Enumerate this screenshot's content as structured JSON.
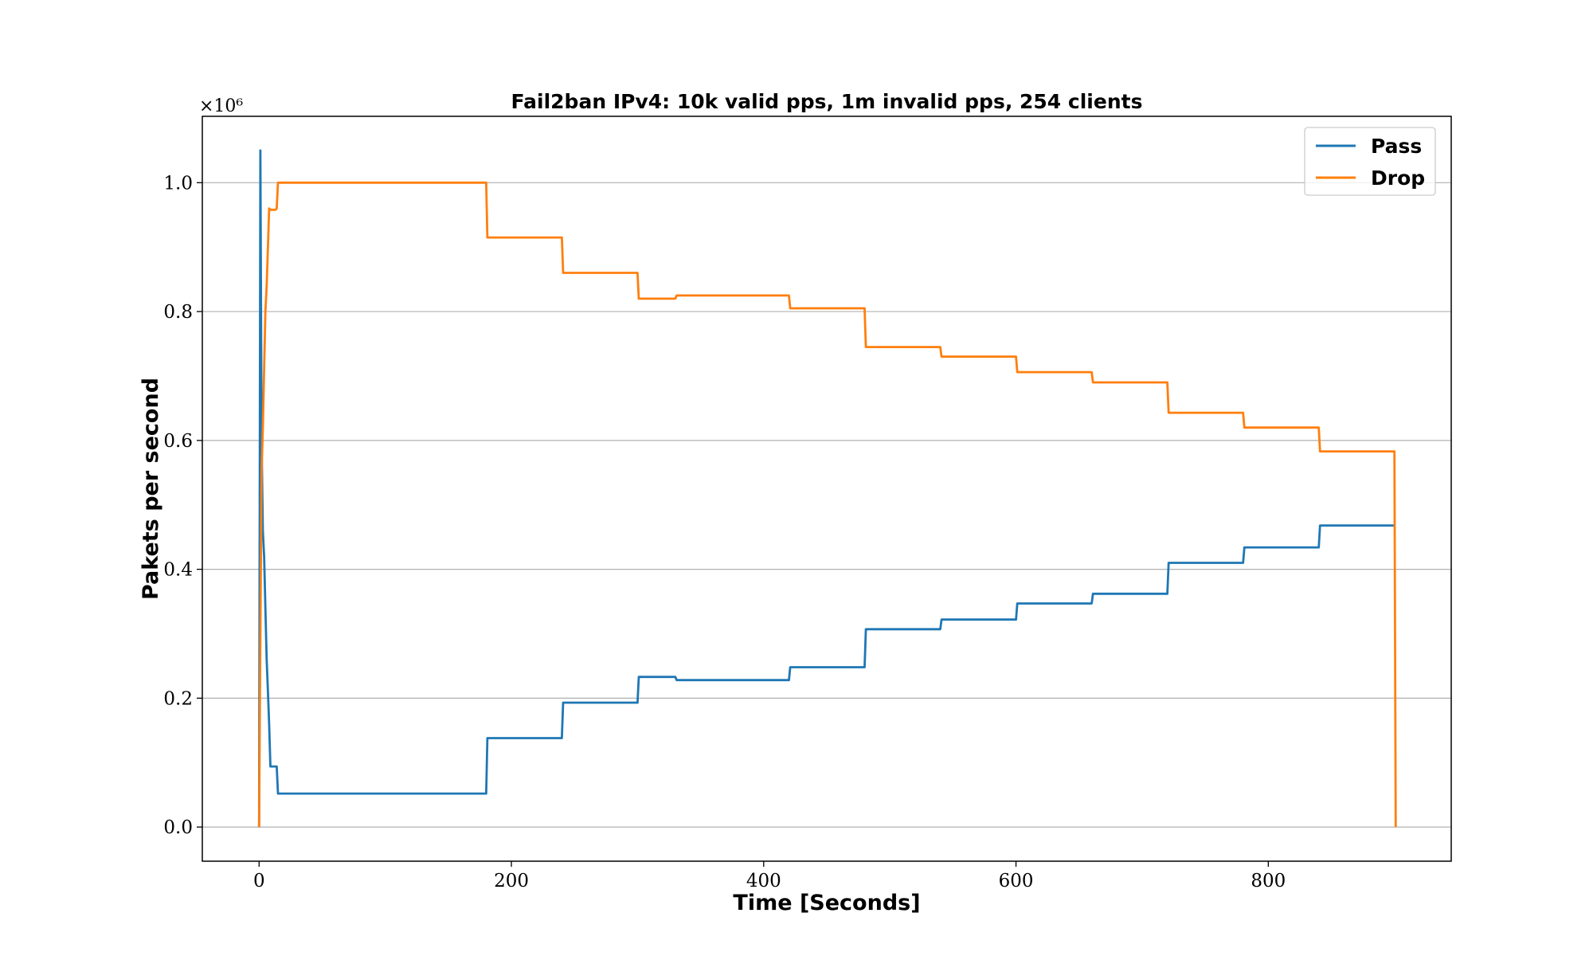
{
  "chart_data": {
    "type": "line",
    "title": "Fail2ban IPv4:  10k valid pps, 1m invalid pps, 254 clients",
    "xlabel": "Time [Seconds]",
    "ylabel": "Pakets per second",
    "y_offset_label": "×10⁶",
    "xlim": [
      -45,
      945
    ],
    "ylim": [
      -0.053,
      1.103
    ],
    "x_ticks": [
      0,
      200,
      400,
      600,
      800
    ],
    "x_tick_labels": [
      "0",
      "200",
      "400",
      "600",
      "800"
    ],
    "y_ticks": [
      0.0,
      0.2,
      0.4,
      0.6,
      0.8,
      1.0
    ],
    "y_tick_labels": [
      "0.0",
      "0.2",
      "0.4",
      "0.6",
      "0.8",
      "1.0"
    ],
    "grid": "horizontal",
    "legend_position": "top-right",
    "series": [
      {
        "name": "Pass",
        "color": "#1f77b4",
        "x": [
          0,
          1,
          2,
          3,
          4,
          5,
          6,
          7,
          8,
          9,
          10,
          11,
          12,
          13,
          14,
          15,
          180,
          181,
          240,
          241,
          300,
          301,
          330,
          331,
          420,
          421,
          480,
          481,
          540,
          541,
          600,
          601,
          660,
          661,
          720,
          721,
          780,
          781,
          840,
          841,
          899,
          900
        ],
        "values": [
          0.0,
          1.05,
          0.6,
          0.46,
          0.42,
          0.34,
          0.26,
          0.21,
          0.16,
          0.094,
          0.094,
          0.094,
          0.094,
          0.094,
          0.094,
          0.052,
          0.052,
          0.138,
          0.138,
          0.193,
          0.193,
          0.233,
          0.233,
          0.228,
          0.228,
          0.248,
          0.248,
          0.307,
          0.307,
          0.322,
          0.322,
          0.347,
          0.347,
          0.362,
          0.362,
          0.41,
          0.41,
          0.434,
          0.434,
          0.468,
          0.468,
          0.468
        ]
      },
      {
        "name": "Drop",
        "color": "#ff7f0e",
        "x": [
          0,
          1,
          2,
          3,
          4,
          5,
          6,
          7,
          8,
          9,
          10,
          11,
          12,
          13,
          14,
          15,
          180,
          181,
          240,
          241,
          300,
          301,
          330,
          331,
          420,
          421,
          480,
          481,
          540,
          541,
          600,
          601,
          660,
          661,
          720,
          721,
          780,
          781,
          840,
          841,
          899,
          900,
          901
        ],
        "values": [
          0.0,
          0.3,
          0.55,
          0.62,
          0.71,
          0.8,
          0.84,
          0.9,
          0.96,
          0.958,
          0.958,
          0.958,
          0.958,
          0.958,
          0.96,
          1.0,
          1.0,
          0.915,
          0.915,
          0.86,
          0.86,
          0.82,
          0.82,
          0.825,
          0.825,
          0.805,
          0.805,
          0.745,
          0.745,
          0.73,
          0.73,
          0.706,
          0.706,
          0.69,
          0.69,
          0.643,
          0.643,
          0.62,
          0.62,
          0.583,
          0.583,
          0.583,
          0.0
        ]
      }
    ]
  }
}
